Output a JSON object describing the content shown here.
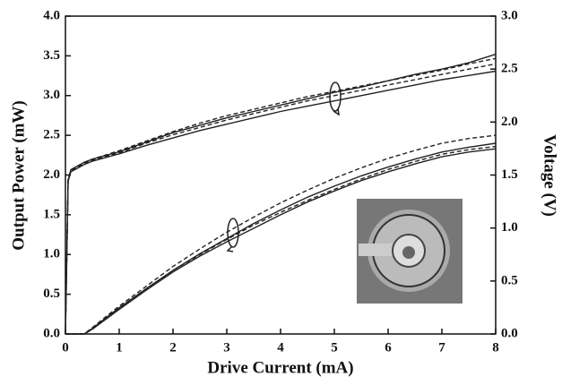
{
  "chart_data": {
    "type": "line",
    "xlabel": "Drive Current (mA)",
    "ylabel": "Output Power (mW)",
    "y2label": "Voltage (V)",
    "x": [
      0,
      0.05,
      0.1,
      0.35,
      0.5,
      1,
      1.5,
      2,
      2.5,
      3,
      3.5,
      4,
      4.5,
      5,
      5.5,
      6,
      6.5,
      7,
      7.5,
      8
    ],
    "xlim": [
      0,
      8
    ],
    "xticks": [
      0,
      1,
      2,
      3,
      4,
      5,
      6,
      7,
      8
    ],
    "ylim": [
      0,
      4
    ],
    "yticks": [
      {
        "value": 0,
        "label": "0.0"
      },
      {
        "value": 0.5,
        "label": "0.5"
      },
      {
        "value": 1,
        "label": "1.0"
      },
      {
        "value": 1.5,
        "label": "1.5"
      },
      {
        "value": 2,
        "label": "2.0"
      },
      {
        "value": 2.5,
        "label": "2.5"
      },
      {
        "value": 3,
        "label": "3.0"
      },
      {
        "value": 3.5,
        "label": "3.5"
      },
      {
        "value": 4,
        "label": "4.0"
      }
    ],
    "y2lim": [
      0,
      3
    ],
    "y2ticks": [
      {
        "value": 0,
        "label": "0.0"
      },
      {
        "value": 0.5,
        "label": "0.5"
      },
      {
        "value": 1,
        "label": "1.0"
      },
      {
        "value": 1.5,
        "label": "1.5"
      },
      {
        "value": 2,
        "label": "2.0"
      },
      {
        "value": 2.5,
        "label": "2.5"
      },
      {
        "value": 3,
        "label": "3.0"
      }
    ],
    "series": [
      {
        "color": "#222222",
        "dash": false,
        "values": [
          0,
          0,
          0,
          0,
          0.07,
          0.33,
          0.57,
          0.8,
          1.01,
          1.2,
          1.39,
          1.56,
          1.72,
          1.86,
          1.99,
          2.1,
          2.2,
          2.29,
          2.35,
          2.4
        ]
      },
      {
        "color": "#222222",
        "dash": false,
        "values": [
          0,
          0,
          0,
          0,
          0.06,
          0.31,
          0.55,
          0.78,
          0.98,
          1.16,
          1.33,
          1.5,
          1.66,
          1.8,
          1.93,
          2.04,
          2.14,
          2.23,
          2.29,
          2.33
        ]
      },
      {
        "color": "#222222",
        "dash": true,
        "values": [
          0,
          0,
          0,
          0,
          0.08,
          0.35,
          0.6,
          0.85,
          1.07,
          1.28,
          1.47,
          1.65,
          1.81,
          1.96,
          2.09,
          2.21,
          2.31,
          2.4,
          2.46,
          2.5
        ]
      },
      {
        "color": "#222222",
        "dash": true,
        "values": [
          0,
          0,
          0,
          0,
          0.06,
          0.32,
          0.56,
          0.8,
          1.0,
          1.19,
          1.37,
          1.53,
          1.68,
          1.82,
          1.95,
          2.07,
          2.17,
          2.26,
          2.32,
          2.36
        ]
      },
      {
        "color": "#222222",
        "dash": false,
        "axis": "y2",
        "values": [
          0,
          1.45,
          1.55,
          1.62,
          1.65,
          1.72,
          1.81,
          1.9,
          1.97,
          2.04,
          2.1,
          2.16,
          2.22,
          2.28,
          2.33,
          2.39,
          2.45,
          2.5,
          2.56,
          2.64
        ]
      },
      {
        "color": "#222222",
        "dash": false,
        "axis": "y2",
        "values": [
          0,
          1.44,
          1.53,
          1.6,
          1.63,
          1.7,
          1.78,
          1.85,
          1.92,
          1.98,
          2.04,
          2.1,
          2.15,
          2.2,
          2.25,
          2.3,
          2.35,
          2.4,
          2.44,
          2.48
        ]
      },
      {
        "color": "#222222",
        "dash": true,
        "axis": "y2",
        "values": [
          0,
          1.46,
          1.55,
          1.62,
          1.65,
          1.73,
          1.82,
          1.91,
          1.99,
          2.06,
          2.12,
          2.18,
          2.24,
          2.29,
          2.34,
          2.39,
          2.44,
          2.49,
          2.55,
          2.6
        ]
      },
      {
        "color": "#222222",
        "dash": true,
        "axis": "y2",
        "values": [
          0,
          1.45,
          1.54,
          1.61,
          1.64,
          1.71,
          1.8,
          1.88,
          1.95,
          2.02,
          2.08,
          2.14,
          2.2,
          2.25,
          2.3,
          2.35,
          2.4,
          2.45,
          2.5,
          2.55
        ]
      }
    ]
  }
}
